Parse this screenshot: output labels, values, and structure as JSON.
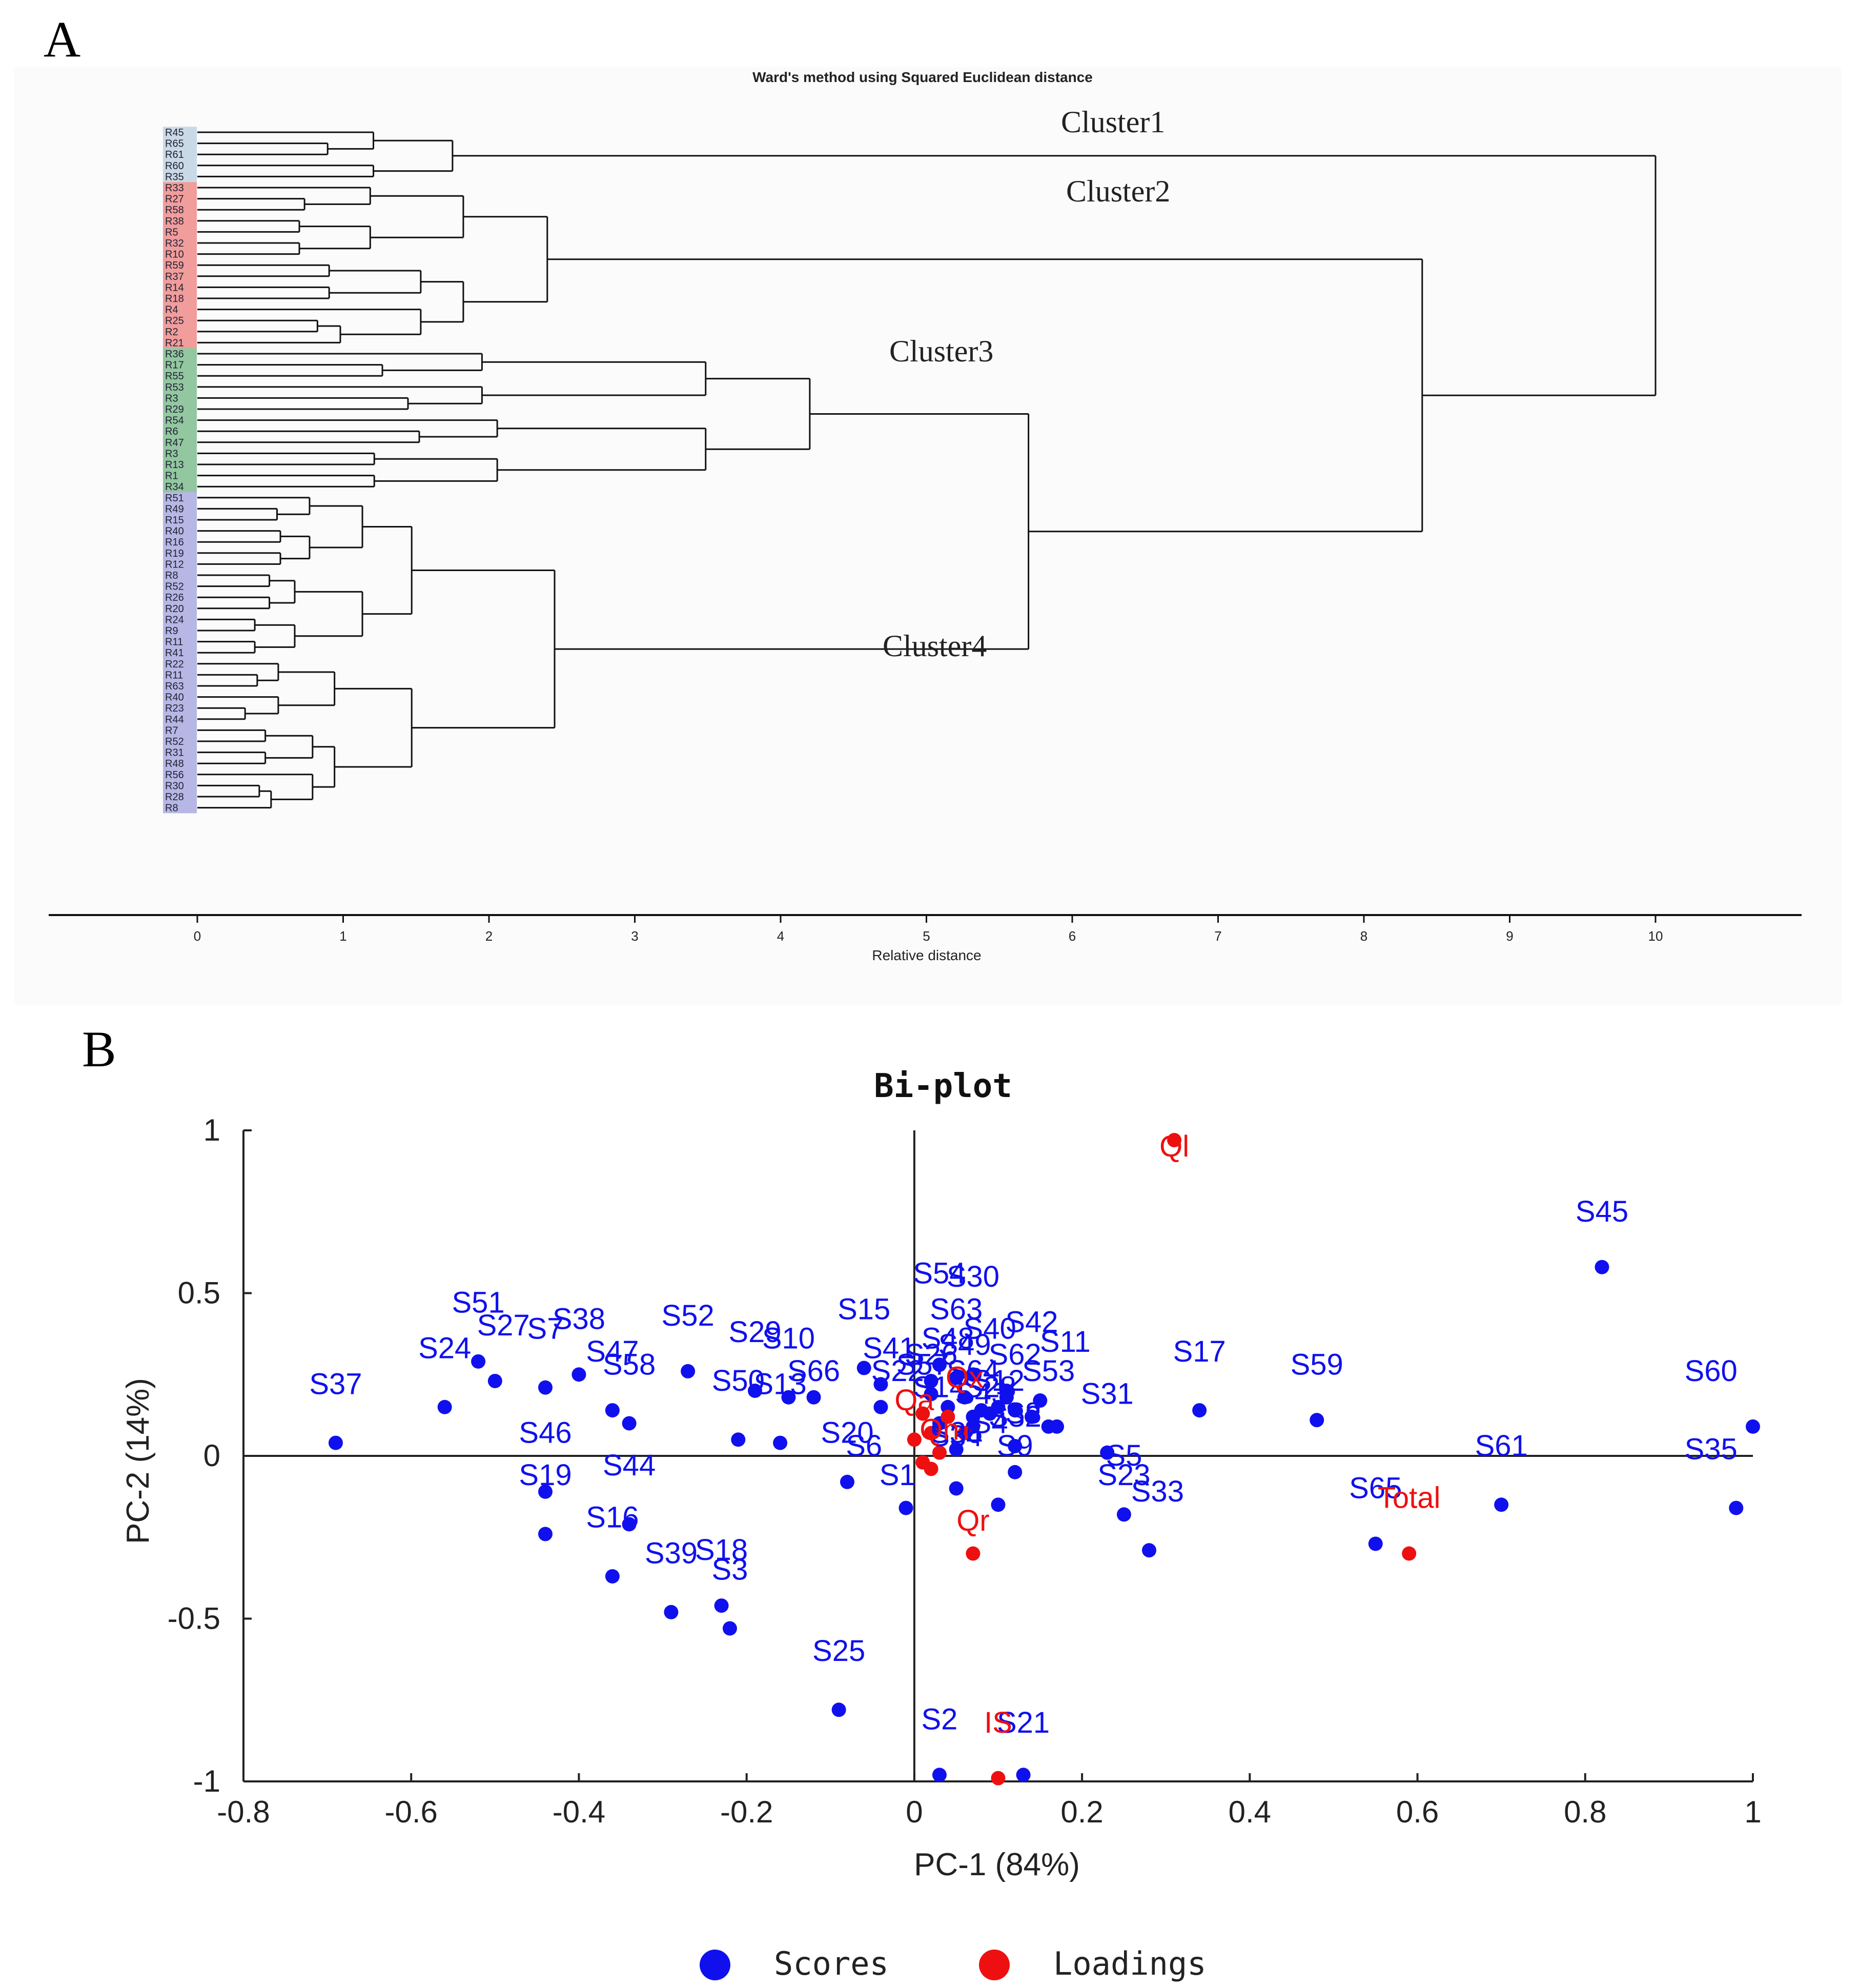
{
  "panel_a": {
    "panel_label": "A",
    "title": "Ward's method using Squared Euclidean distance",
    "xlabel": "Relative distance",
    "leaf_labels": [
      "R45",
      "R65",
      "R61",
      "R60",
      "R35",
      "R33",
      "R27",
      "R58",
      "R38",
      "R5",
      "R32",
      "R10",
      "R59",
      "R37",
      "R14",
      "R18",
      "R4",
      "R25",
      "R2",
      "R21",
      "R36",
      "R17",
      "R55",
      "R53",
      "R3",
      "R29",
      "R54",
      "R6",
      "R47",
      "R3",
      "R13",
      "R1",
      "R34",
      "R51",
      "R49",
      "R15",
      "R40",
      "R16",
      "R19",
      "R12",
      "R8",
      "R52",
      "R26",
      "R20",
      "R24",
      "R9",
      "R11",
      "R41",
      "R22",
      "R11",
      "R63",
      "R40",
      "R23",
      "R44",
      "R7",
      "R52",
      "R31",
      "R48",
      "R56",
      "R30",
      "R28",
      "R8"
    ],
    "leaf_colors": {
      "cluster1": "#c9d9e6",
      "cluster2": "#e8504f",
      "cluster3": "#3d9c56",
      "cluster4": "#7f7fd6"
    },
    "cluster_labels": [
      "Cluster1",
      "Cluster2",
      "Cluster3",
      "Cluster4"
    ],
    "chart_data": {
      "type": "dendrogram",
      "title": "Ward's method using Squared Euclidean distance",
      "xlabel": "Relative distance",
      "xlim": [
        0,
        10
      ],
      "x_ticks": [
        0,
        1,
        2,
        3,
        4,
        5,
        6,
        7,
        8,
        9,
        10
      ],
      "clusters": [
        {
          "name": "Cluster1",
          "leaf_count": 5
        },
        {
          "name": "Cluster2",
          "leaf_count": 15
        },
        {
          "name": "Cluster3",
          "leaf_count": 13
        },
        {
          "name": "Cluster4",
          "leaf_count": 29
        }
      ],
      "merges": [
        {
          "members": [
            "Cluster1",
            "Cluster2",
            "Cluster3",
            "Cluster4"
          ],
          "height": 10.0
        },
        {
          "members": [
            "Cluster2",
            "Cluster3",
            "Cluster4"
          ],
          "height": 8.4
        },
        {
          "members": [
            "Cluster3",
            "Cluster4"
          ],
          "height": 5.7
        },
        {
          "members": [
            "Cluster2"
          ],
          "height": 2.4
        },
        {
          "members": [
            "Cluster3"
          ],
          "height": 4.2
        },
        {
          "members": [
            "Cluster4"
          ],
          "height": 2.45
        },
        {
          "members": [
            "Cluster1"
          ],
          "height": 1.75
        }
      ]
    }
  },
  "panel_b": {
    "panel_label": "B",
    "chart_data": {
      "type": "scatter",
      "title": "Bi-plot",
      "xlabel": "PC-1 (84%)",
      "ylabel": "PC-2 (14%)",
      "xlim": [
        -0.8,
        1.0
      ],
      "ylim": [
        -1.0,
        1.0
      ],
      "x_ticks": [
        "-0.8",
        "-0.6",
        "-0.4",
        "-0.2",
        "0",
        "0.2",
        "0.4",
        "0.6",
        "0.8",
        "1"
      ],
      "y_ticks": [
        "1",
        "0.5",
        "0",
        "-0.5",
        "-1"
      ],
      "legend_position": "bottom",
      "series": [
        {
          "name": "Scores",
          "color": "#1010ee",
          "points": [
            {
              "label": "S37",
              "x": -0.69,
              "y": 0.04,
              "lx": -0.69,
              "ly": 0.19
            },
            {
              "label": "S24",
              "x": -0.56,
              "y": 0.15,
              "lx": -0.56,
              "ly": 0.3
            },
            {
              "label": "S51",
              "x": -0.52,
              "y": 0.29,
              "lx": -0.52,
              "ly": 0.44
            },
            {
              "label": "S27",
              "x": -0.5,
              "y": 0.23,
              "lx": -0.49,
              "ly": 0.37
            },
            {
              "label": "S7",
              "x": -0.44,
              "y": 0.21,
              "lx": -0.44,
              "ly": 0.36
            },
            {
              "label": "S38",
              "x": -0.4,
              "y": 0.25,
              "lx": -0.4,
              "ly": 0.39
            },
            {
              "label": "S47",
              "x": -0.36,
              "y": 0.14,
              "lx": -0.36,
              "ly": 0.29
            },
            {
              "label": "S58",
              "x": -0.34,
              "y": 0.1,
              "lx": -0.34,
              "ly": 0.25
            },
            {
              "label": "S52",
              "x": -0.27,
              "y": 0.26,
              "lx": -0.27,
              "ly": 0.4
            },
            {
              "label": "S46",
              "x": -0.44,
              "y": -0.11,
              "lx": -0.44,
              "ly": 0.04
            },
            {
              "label": "S19",
              "x": -0.44,
              "y": -0.24,
              "lx": -0.44,
              "ly": -0.09
            },
            {
              "label": "S44",
              "x": -0.34,
              "y": -0.21,
              "lx": -0.34,
              "ly": -0.06
            },
            {
              "label": "S16",
              "x": -0.36,
              "y": -0.37,
              "lx": -0.36,
              "ly": -0.22
            },
            {
              "label": "S39",
              "x": -0.29,
              "y": -0.48,
              "lx": -0.29,
              "ly": -0.33
            },
            {
              "label": "S18",
              "x": -0.23,
              "y": -0.46,
              "lx": -0.23,
              "ly": -0.32
            },
            {
              "label": "S3",
              "x": -0.22,
              "y": -0.53,
              "lx": -0.22,
              "ly": -0.38
            },
            {
              "label": "S50",
              "x": -0.21,
              "y": 0.05,
              "lx": -0.21,
              "ly": 0.2
            },
            {
              "label": "S29",
              "x": -0.19,
              "y": 0.2,
              "lx": -0.19,
              "ly": 0.35
            },
            {
              "label": "S13",
              "x": -0.16,
              "y": 0.04,
              "lx": -0.16,
              "ly": 0.19
            },
            {
              "label": "S10",
              "x": -0.15,
              "y": 0.18,
              "lx": -0.15,
              "ly": 0.33
            },
            {
              "label": "S66",
              "x": -0.12,
              "y": 0.18,
              "lx": -0.12,
              "ly": 0.23
            },
            {
              "label": "S15",
              "x": -0.06,
              "y": 0.27,
              "lx": -0.06,
              "ly": 0.42
            },
            {
              "label": "S20",
              "x": -0.04,
              "y": 0.15,
              "lx": -0.08,
              "ly": 0.04
            },
            {
              "label": "S6",
              "x": -0.08,
              "y": -0.08,
              "lx": -0.06,
              "ly": 0.0
            },
            {
              "label": "S1",
              "x": -0.01,
              "y": -0.16,
              "lx": -0.02,
              "ly": -0.09
            },
            {
              "label": "S25",
              "x": -0.09,
              "y": -0.78,
              "lx": -0.09,
              "ly": -0.63
            },
            {
              "label": "S2",
              "x": 0.03,
              "y": -0.98,
              "lx": 0.03,
              "ly": -0.84
            },
            {
              "label": "S21",
              "x": 0.13,
              "y": -0.98,
              "lx": 0.13,
              "ly": -0.85
            },
            {
              "label": "S54",
              "x": 0.03,
              "y": 0.28,
              "lx": 0.03,
              "ly": 0.53
            },
            {
              "label": "S30",
              "x": 0.07,
              "y": 0.25,
              "lx": 0.07,
              "ly": 0.52
            },
            {
              "label": "S63",
              "x": 0.05,
              "y": 0.24,
              "lx": 0.05,
              "ly": 0.42
            },
            {
              "label": "S42",
              "x": 0.11,
              "y": 0.2,
              "lx": 0.14,
              "ly": 0.38
            },
            {
              "label": "S11",
              "x": 0.15,
              "y": 0.17,
              "lx": 0.18,
              "ly": 0.32
            },
            {
              "label": "S53",
              "x": 0.16,
              "y": 0.09,
              "lx": 0.16,
              "ly": 0.23
            },
            {
              "label": "S31",
              "x": 0.17,
              "y": 0.09,
              "lx": 0.23,
              "ly": 0.16
            },
            {
              "label": "S32",
              "x": 0.12,
              "y": 0.03,
              "lx": 0.12,
              "ly": 0.09
            },
            {
              "label": "S34",
              "x": 0.05,
              "y": 0.02,
              "lx": 0.05,
              "ly": 0.03
            },
            {
              "label": "S9",
              "x": 0.12,
              "y": -0.05,
              "lx": 0.12,
              "ly": 0.0
            },
            {
              "label": "S14",
              "x": 0.08,
              "y": 0.14,
              "lx": 0.03,
              "ly": 0.18
            },
            {
              "label": "S57",
              "x": 0.02,
              "y": 0.19,
              "lx": 0.01,
              "ly": 0.25
            },
            {
              "label": "S43",
              "x": 0.07,
              "y": 0.09,
              "lx": 0.08,
              "ly": 0.16
            },
            {
              "label": "S62",
              "x": 0.14,
              "y": 0.12,
              "lx": 0.12,
              "ly": 0.28
            },
            {
              "label": "S12",
              "x": 0.1,
              "y": 0.15,
              "lx": 0.1,
              "ly": 0.2
            },
            {
              "label": "S48",
              "x": 0.04,
              "y": 0.15,
              "lx": 0.04,
              "ly": 0.33
            },
            {
              "label": "S28",
              "x": 0.09,
              "y": 0.13,
              "lx": 0.09,
              "ly": 0.18
            },
            {
              "label": "S26",
              "x": 0.02,
              "y": 0.23,
              "lx": 0.02,
              "ly": 0.28
            },
            {
              "label": "S41",
              "x": -0.04,
              "y": 0.22,
              "lx": -0.03,
              "ly": 0.3
            },
            {
              "label": "S22",
              "x": 0.03,
              "y": 0.1,
              "lx": -0.02,
              "ly": 0.23
            },
            {
              "label": "S36",
              "x": 0.05,
              "y": -0.1,
              "lx": 0.05,
              "ly": 0.04
            },
            {
              "label": "S4",
              "x": 0.1,
              "y": -0.15,
              "lx": 0.09,
              "ly": 0.07
            },
            {
              "label": "S8",
              "x": 0.12,
              "y": 0.14,
              "lx": 0.13,
              "ly": 0.1
            },
            {
              "label": "S64",
              "x": 0.11,
              "y": 0.18,
              "lx": 0.07,
              "ly": 0.23
            },
            {
              "label": "S49",
              "x": 0.06,
              "y": 0.18,
              "lx": 0.06,
              "ly": 0.31
            },
            {
              "label": "S40",
              "x": 0.07,
              "y": 0.12,
              "lx": 0.09,
              "ly": 0.36
            },
            {
              "label": "S17",
              "x": 0.34,
              "y": 0.14,
              "lx": 0.34,
              "ly": 0.29
            },
            {
              "label": "S59",
              "x": 0.48,
              "y": 0.11,
              "lx": 0.48,
              "ly": 0.25
            },
            {
              "label": "S5",
              "x": 0.23,
              "y": 0.01,
              "lx": 0.25,
              "ly": -0.03
            },
            {
              "label": "S23",
              "x": 0.25,
              "y": -0.18,
              "lx": 0.25,
              "ly": -0.09
            },
            {
              "label": "S33",
              "x": 0.28,
              "y": -0.29,
              "lx": 0.29,
              "ly": -0.14
            },
            {
              "label": "S65",
              "x": 0.55,
              "y": -0.27,
              "lx": 0.55,
              "ly": -0.13
            },
            {
              "label": "S61",
              "x": 0.7,
              "y": -0.15,
              "lx": 0.7,
              "ly": 0.0
            },
            {
              "label": "S45",
              "x": 0.82,
              "y": 0.58,
              "lx": 0.82,
              "ly": 0.72
            },
            {
              "label": "S60",
              "x": 1.0,
              "y": 0.09,
              "lx": 0.95,
              "ly": 0.23
            },
            {
              "label": "S35",
              "x": 0.98,
              "y": -0.16,
              "lx": 0.95,
              "ly": -0.01
            }
          ]
        },
        {
          "name": "Loadings",
          "color": "#ee1010",
          "points": [
            {
              "label": "Ql",
              "x": 0.31,
              "y": 0.97,
              "lx": 0.31,
              "ly": 0.92
            },
            {
              "label": "Total",
              "x": 0.59,
              "y": -0.3,
              "lx": 0.59,
              "ly": -0.16
            },
            {
              "label": "Qr",
              "x": 0.07,
              "y": -0.3,
              "lx": 0.07,
              "ly": -0.23
            },
            {
              "label": "IS",
              "x": 0.1,
              "y": -0.99,
              "lx": 0.1,
              "ly": -0.85
            },
            {
              "label": "Qx",
              "x": 0.04,
              "y": 0.12,
              "lx": 0.06,
              "ly": 0.21
            },
            {
              "label": "Qa",
              "x": 0.0,
              "y": 0.05,
              "lx": 0.0,
              "ly": 0.14
            },
            {
              "label": "Qh",
              "x": 0.02,
              "y": -0.04,
              "lx": 0.03,
              "ly": 0.05
            },
            {
              "label": "",
              "x": 0.01,
              "y": 0.13,
              "lx": 0,
              "ly": 0
            },
            {
              "label": "",
              "x": 0.02,
              "y": 0.07,
              "lx": 0,
              "ly": 0
            },
            {
              "label": "",
              "x": 0.06,
              "y": 0.07,
              "lx": 0,
              "ly": 0
            },
            {
              "label": "",
              "x": 0.01,
              "y": -0.02,
              "lx": 0,
              "ly": 0
            },
            {
              "label": "",
              "x": 0.03,
              "y": 0.01,
              "lx": 0,
              "ly": 0
            }
          ]
        }
      ]
    },
    "legend": [
      {
        "label": "Scores",
        "color": "#1010ee"
      },
      {
        "label": "Loadings",
        "color": "#ee1010"
      }
    ]
  }
}
